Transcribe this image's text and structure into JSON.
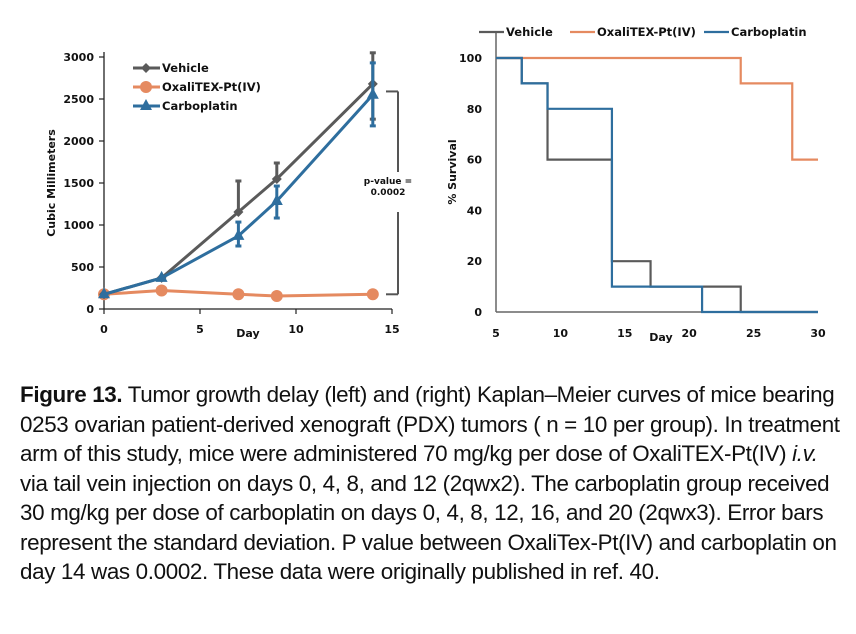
{
  "colors": {
    "vehicle": "#5a5a5a",
    "oxalitex": "#e58a60",
    "carboplatin": "#2e6e9e",
    "axis": "#222222"
  },
  "chart_data": [
    {
      "type": "line",
      "title": "",
      "xlabel": "Day",
      "ylabel": "Cubic Millimeters",
      "xlim": [
        0,
        15
      ],
      "ylim": [
        0,
        3000
      ],
      "xticks": [
        0,
        5,
        10,
        15
      ],
      "yticks": [
        0,
        500,
        1000,
        1500,
        2000,
        2500,
        3000
      ],
      "grid": false,
      "legend_position": "top-left",
      "x": [
        0,
        3,
        7,
        9,
        14
      ],
      "series": [
        {
          "key": "vehicle",
          "name": "Vehicle",
          "marker": "diamond",
          "values": [
            175,
            370,
            1155,
            1548,
            2680
          ],
          "err_high": [
            null,
            null,
            1524,
            1738,
            3050
          ],
          "err_low": [
            null,
            null,
            1155,
            1548,
            2260
          ]
        },
        {
          "key": "oxalitex",
          "name": "OxaliTEX-Pt(IV)",
          "marker": "circle",
          "values": [
            175,
            220,
            175,
            155,
            175
          ],
          "err_high": [
            null,
            null,
            null,
            null,
            null
          ],
          "err_low": [
            null,
            null,
            null,
            null,
            null
          ]
        },
        {
          "key": "carboplatin",
          "name": "Carboplatin",
          "marker": "triangle",
          "values": [
            175,
            370,
            870,
            1286,
            2550
          ],
          "err_high": [
            null,
            null,
            1035,
            1464,
            2930
          ],
          "err_low": [
            null,
            null,
            750,
            1083,
            2180
          ]
        }
      ],
      "annotation": {
        "line1": "p-value =",
        "line2": "0.0002",
        "bracket_from": 2590,
        "bracket_to": 175
      }
    },
    {
      "type": "line",
      "subtype": "step",
      "title": "",
      "xlabel": "Day",
      "ylabel": "% Survival",
      "xlim": [
        5,
        30
      ],
      "ylim": [
        0,
        100
      ],
      "xticks": [
        5,
        10,
        15,
        20,
        25,
        30
      ],
      "yticks": [
        0,
        20,
        40,
        60,
        80,
        100
      ],
      "grid": false,
      "legend_position": "top",
      "series": [
        {
          "key": "vehicle",
          "name": "Vehicle",
          "steps": [
            [
              5,
              100
            ],
            [
              7,
              90
            ],
            [
              9,
              60
            ],
            [
              14,
              20
            ],
            [
              17,
              10
            ],
            [
              24,
              0
            ],
            [
              30,
              0
            ]
          ]
        },
        {
          "key": "oxalitex",
          "name": "OxaliTEX-Pt(IV)",
          "steps": [
            [
              5,
              100
            ],
            [
              24,
              90
            ],
            [
              28,
              60
            ],
            [
              30,
              60
            ]
          ]
        },
        {
          "key": "carboplatin",
          "name": "Carboplatin",
          "steps": [
            [
              5,
              100
            ],
            [
              7,
              90
            ],
            [
              9,
              80
            ],
            [
              14,
              10
            ],
            [
              21,
              0
            ],
            [
              30,
              0
            ]
          ]
        }
      ]
    }
  ],
  "caption": {
    "label": "Figure 13.",
    "part1": " Tumor growth delay (left) and (right) Kaplan–Meier curves of mice bearing 0253 ovarian patient-derived xenograft (PDX) tumors ( n = 10 per group). In treatment arm of this study, mice were administered 70 mg/kg per dose of OxaliTEX-Pt(IV) ",
    "italic": "i.v.",
    "part2": " via tail vein injection on days 0, 4, 8, and 12 (2qwx2). The carboplatin group received 30 mg/kg per dose of carboplatin on days 0, 4, 8, 12, 16, and 20 (2qwx3). Error bars represent the standard deviation. P value between OxaliTex-Pt(IV) and carboplatin on day 14 was 0.0002. These data were originally published in ref. 40."
  }
}
